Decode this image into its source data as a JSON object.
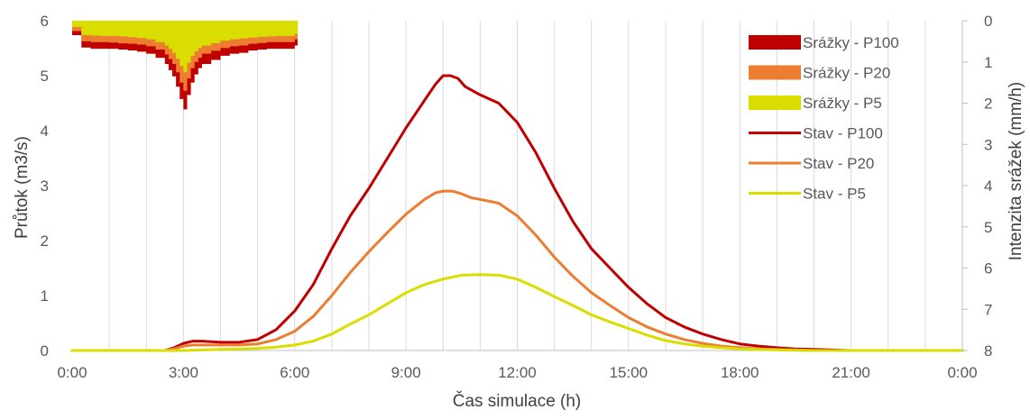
{
  "chart_data": {
    "type": "line",
    "xlabel": "Čas simulace (h)",
    "ylabel": "Průtok (m3/s)",
    "y2label": "Intenzita srážek (mm/h)",
    "x_ticks": [
      "0:00",
      "3:00",
      "6:00",
      "9:00",
      "12:00",
      "15:00",
      "18:00",
      "21:00",
      "0:00"
    ],
    "x_range_hours": [
      0,
      24
    ],
    "ylim": [
      0,
      6
    ],
    "y_ticks": [
      "0",
      "1",
      "2",
      "3",
      "4",
      "5",
      "6"
    ],
    "y2lim": [
      0,
      8
    ],
    "y2_inverted": true,
    "y2_ticks": [
      "0",
      "1",
      "2",
      "3",
      "4",
      "5",
      "6",
      "7",
      "8"
    ],
    "grid": "vertical",
    "legend_position": "top-right",
    "rain_series": [
      {
        "name": "Srážky - P100",
        "color": "#c00000",
        "x_hours": [
          0.0,
          0.25,
          0.5,
          0.75,
          1.0,
          1.25,
          1.5,
          1.75,
          2.0,
          2.25,
          2.5,
          2.6,
          2.7,
          2.8,
          2.9,
          3.0,
          3.1,
          3.2,
          3.3,
          3.4,
          3.5,
          3.75,
          4.0,
          4.25,
          4.5,
          4.75,
          5.0,
          5.25,
          5.5,
          5.75,
          6.0
        ],
        "intensity": [
          0.35,
          0.65,
          0.68,
          0.68,
          0.68,
          0.7,
          0.72,
          0.75,
          0.8,
          0.9,
          1.05,
          1.2,
          1.35,
          1.6,
          1.9,
          2.15,
          1.8,
          1.5,
          1.3,
          1.15,
          1.05,
          0.95,
          0.85,
          0.8,
          0.78,
          0.72,
          0.7,
          0.68,
          0.68,
          0.68,
          0.6
        ]
      },
      {
        "name": "Srážky - P20",
        "color": "#ed7d31",
        "x_hours": [
          0.0,
          0.25,
          0.5,
          0.75,
          1.0,
          1.25,
          1.5,
          1.75,
          2.0,
          2.25,
          2.5,
          2.6,
          2.7,
          2.8,
          2.9,
          3.0,
          3.1,
          3.2,
          3.3,
          3.4,
          3.5,
          3.75,
          4.0,
          4.25,
          4.5,
          4.75,
          5.0,
          5.25,
          5.5,
          5.75,
          6.0
        ],
        "intensity": [
          0.25,
          0.5,
          0.52,
          0.52,
          0.53,
          0.55,
          0.56,
          0.58,
          0.62,
          0.7,
          0.82,
          0.93,
          1.05,
          1.25,
          1.5,
          1.7,
          1.4,
          1.15,
          1.0,
          0.9,
          0.8,
          0.73,
          0.66,
          0.62,
          0.6,
          0.56,
          0.54,
          0.52,
          0.52,
          0.52,
          0.45
        ]
      },
      {
        "name": "Srážky - P5",
        "color": "#d9de00",
        "x_hours": [
          0.0,
          0.25,
          0.5,
          0.75,
          1.0,
          1.25,
          1.5,
          1.75,
          2.0,
          2.25,
          2.5,
          2.6,
          2.7,
          2.8,
          2.9,
          3.0,
          3.1,
          3.2,
          3.3,
          3.4,
          3.5,
          3.75,
          4.0,
          4.25,
          4.5,
          4.75,
          5.0,
          5.25,
          5.5,
          5.75,
          6.0
        ],
        "intensity": [
          0.15,
          0.35,
          0.36,
          0.37,
          0.37,
          0.38,
          0.4,
          0.42,
          0.45,
          0.52,
          0.6,
          0.68,
          0.78,
          0.92,
          1.1,
          1.25,
          1.02,
          0.85,
          0.74,
          0.66,
          0.6,
          0.54,
          0.48,
          0.45,
          0.43,
          0.41,
          0.39,
          0.38,
          0.37,
          0.37,
          0.32
        ]
      }
    ],
    "flow_series": [
      {
        "name": "Stav - P100",
        "color": "#c00000",
        "x_hours": [
          0,
          2.5,
          2.75,
          3.0,
          3.25,
          3.5,
          4.0,
          4.5,
          5.0,
          5.5,
          6.0,
          6.5,
          7.0,
          7.5,
          8.0,
          8.5,
          9.0,
          9.5,
          9.8,
          10.0,
          10.2,
          10.4,
          10.6,
          11.0,
          11.5,
          12.0,
          12.5,
          13.0,
          13.5,
          14.0,
          14.5,
          15.0,
          15.5,
          16.0,
          16.5,
          17.0,
          17.5,
          18.0,
          18.5,
          19.0,
          19.5,
          20.0,
          21.0,
          22.0,
          24.0
        ],
        "values": [
          0,
          0,
          0.05,
          0.13,
          0.17,
          0.17,
          0.15,
          0.15,
          0.2,
          0.38,
          0.72,
          1.2,
          1.85,
          2.45,
          2.95,
          3.5,
          4.05,
          4.55,
          4.85,
          5.0,
          5.0,
          4.95,
          4.8,
          4.65,
          4.5,
          4.15,
          3.6,
          2.95,
          2.35,
          1.85,
          1.5,
          1.15,
          0.85,
          0.6,
          0.43,
          0.3,
          0.2,
          0.12,
          0.08,
          0.05,
          0.03,
          0.02,
          0,
          0,
          0
        ]
      },
      {
        "name": "Stav - P20",
        "color": "#ed7d31",
        "x_hours": [
          0,
          2.5,
          2.75,
          3.0,
          3.25,
          3.5,
          4.0,
          4.5,
          5.0,
          5.5,
          6.0,
          6.5,
          7.0,
          7.5,
          8.0,
          8.5,
          9.0,
          9.5,
          9.8,
          10.0,
          10.25,
          10.5,
          10.75,
          11.0,
          11.5,
          12.0,
          12.5,
          13.0,
          13.5,
          14.0,
          14.5,
          15.0,
          15.5,
          16.0,
          16.5,
          17.0,
          17.5,
          18.0,
          18.5,
          19.0,
          19.5,
          20.0,
          21.0,
          24.0
        ],
        "values": [
          0,
          0,
          0.03,
          0.08,
          0.1,
          0.1,
          0.1,
          0.1,
          0.12,
          0.2,
          0.35,
          0.62,
          1.0,
          1.42,
          1.8,
          2.15,
          2.48,
          2.75,
          2.87,
          2.9,
          2.9,
          2.85,
          2.78,
          2.75,
          2.68,
          2.45,
          2.1,
          1.7,
          1.35,
          1.05,
          0.82,
          0.6,
          0.43,
          0.3,
          0.2,
          0.13,
          0.08,
          0.05,
          0.03,
          0.02,
          0.01,
          0,
          0,
          0
        ]
      },
      {
        "name": "Stav - P5",
        "color": "#d9de00",
        "x_hours": [
          0,
          3.0,
          4.0,
          5.0,
          5.5,
          6.0,
          6.5,
          7.0,
          7.5,
          8.0,
          8.5,
          9.0,
          9.5,
          10.0,
          10.5,
          11.0,
          11.5,
          12.0,
          12.5,
          13.0,
          13.5,
          14.0,
          14.5,
          15.0,
          15.5,
          16.0,
          16.5,
          17.0,
          17.5,
          18.0,
          19.0,
          20.0,
          24.0
        ],
        "values": [
          0,
          0,
          0.02,
          0.04,
          0.06,
          0.1,
          0.17,
          0.3,
          0.48,
          0.65,
          0.85,
          1.05,
          1.2,
          1.3,
          1.37,
          1.38,
          1.37,
          1.3,
          1.15,
          0.98,
          0.82,
          0.65,
          0.52,
          0.4,
          0.28,
          0.18,
          0.12,
          0.08,
          0.05,
          0.03,
          0.01,
          0,
          0
        ]
      }
    ]
  }
}
